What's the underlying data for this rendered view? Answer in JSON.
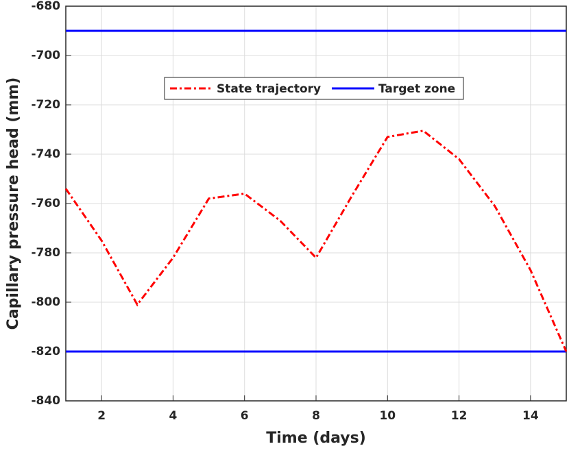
{
  "chart_data": {
    "type": "line",
    "xlabel": "Time (days)",
    "ylabel": "Capillary pressure head (mm)",
    "x": [
      1,
      2,
      3,
      4,
      5,
      6,
      7,
      8,
      9,
      10,
      11,
      12,
      13,
      14,
      15
    ],
    "series": [
      {
        "name": "State trajectory",
        "color": "#ff0000",
        "values": [
          -754,
          -775,
          -801,
          -782,
          -758,
          -756,
          -767,
          -782,
          -757,
          -733,
          -730.5,
          -742,
          -761,
          -787,
          -820
        ]
      }
    ],
    "target_zone": {
      "name": "Target zone",
      "color": "#0000ff",
      "values": [
        -690,
        -820
      ]
    },
    "xlim": [
      1,
      15
    ],
    "xticks": [
      2,
      4,
      6,
      8,
      10,
      12,
      14
    ],
    "ylim": [
      -840,
      -680
    ],
    "yticks": [
      -840,
      -820,
      -800,
      -780,
      -760,
      -740,
      -720,
      -700,
      -680
    ],
    "grid": true,
    "legend": "top"
  }
}
